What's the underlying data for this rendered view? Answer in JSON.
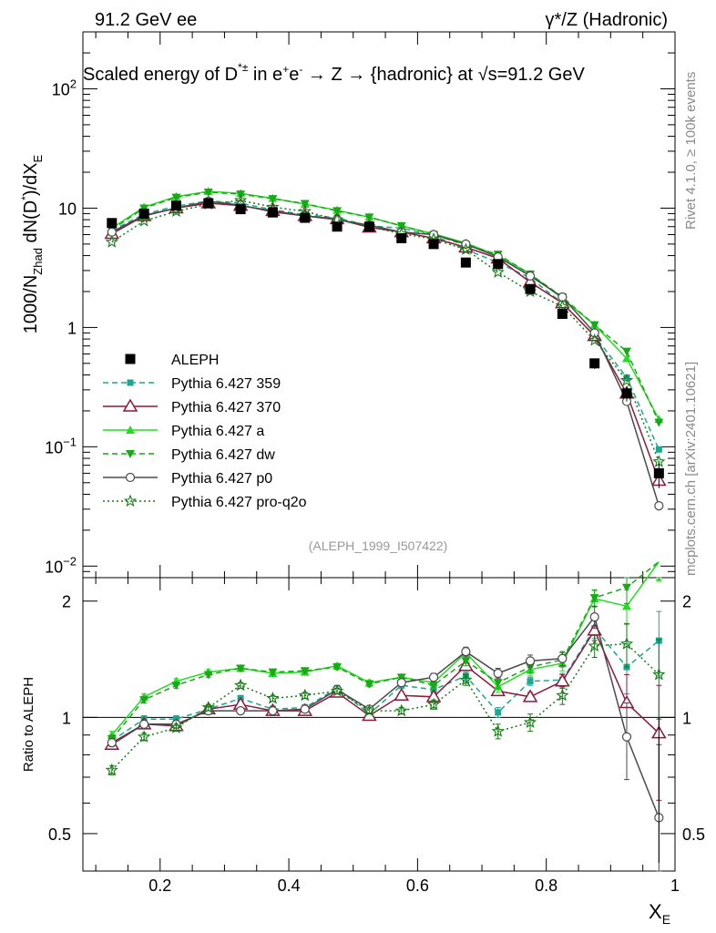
{
  "header": {
    "left": "91.2 GeV ee",
    "right": "γ*/Z (Hadronic)"
  },
  "side_labels": {
    "rivet": "Rivet 4.1.0, ≥ 100k events",
    "mcplots": "mcplots.cern.ch [arXiv:2401.10621]"
  },
  "chart_data": {
    "type": "line",
    "title": "Scaled energy of D*± in e+e- → Z → {hadronic} at √s=91.2 GeV",
    "ylabel": "1000/N_Zhad dN(D*)/dX_E",
    "xlabel": "X_E",
    "ratio_ylabel": "Ratio to ALEPH",
    "watermark": "(ALEPH_1999_I507422)",
    "xlim": [
      0.08,
      1.0
    ],
    "ylim": [
      0.008,
      300
    ],
    "yscale": "log",
    "ratio_ylim": [
      0.4,
      2.3
    ],
    "ratio_yscale": "log",
    "x_ticks": [
      "0.2",
      "0.4",
      "0.6",
      "0.8",
      "1"
    ],
    "y_ticks": [
      "10^-2",
      "10^-1",
      "1",
      "10",
      "10^2"
    ],
    "ratio_ticks": [
      "0.5",
      "1",
      "2"
    ],
    "x": [
      0.125,
      0.175,
      0.225,
      0.275,
      0.325,
      0.375,
      0.425,
      0.475,
      0.525,
      0.575,
      0.625,
      0.675,
      0.725,
      0.775,
      0.825,
      0.875,
      0.925,
      0.975
    ],
    "data": {
      "name": "ALEPH",
      "values": [
        7.5,
        9.0,
        10.5,
        11.0,
        9.8,
        9.2,
        8.3,
        7.0,
        7.0,
        5.6,
        5.0,
        3.5,
        3.4,
        2.1,
        1.3,
        0.5,
        0.28,
        0.06
      ],
      "errors": [
        0.5,
        0.5,
        0.5,
        0.5,
        0.5,
        0.5,
        0.4,
        0.4,
        0.4,
        0.3,
        0.3,
        0.2,
        0.2,
        0.15,
        0.1,
        0.05,
        0.04,
        0.015
      ]
    },
    "series": [
      {
        "name": "Pythia 6.427 359",
        "color": "#1aa891",
        "dash": "6,4",
        "marker": "square",
        "values": [
          6.5,
          8.9,
          10.4,
          11.5,
          11.0,
          9.7,
          8.8,
          8.3,
          7.1,
          6.8,
          5.9,
          4.5,
          3.5,
          2.6,
          1.6,
          0.85,
          0.38,
          0.095
        ],
        "ratio": [
          0.87,
          0.99,
          0.99,
          1.05,
          1.12,
          1.05,
          1.06,
          1.19,
          1.02,
          1.21,
          1.18,
          1.28,
          1.03,
          1.24,
          1.25,
          1.7,
          1.35,
          1.58
        ],
        "ratio_err": [
          0.02,
          0.02,
          0.02,
          0.02,
          0.02,
          0.02,
          0.02,
          0.02,
          0.02,
          0.02,
          0.03,
          0.03,
          0.03,
          0.03,
          0.05,
          0.1,
          0.2,
          0.3
        ]
      },
      {
        "name": "Pythia 6.427 370",
        "color": "#8b1a3a",
        "dash": "",
        "marker": "triangle-open",
        "values": [
          6.1,
          8.6,
          10.0,
          11.0,
          10.5,
          9.5,
          8.6,
          8.1,
          6.9,
          6.3,
          5.6,
          4.7,
          3.8,
          2.4,
          1.6,
          0.85,
          0.28,
          0.052
        ],
        "ratio": [
          0.85,
          0.96,
          0.95,
          1.05,
          1.08,
          1.04,
          1.04,
          1.16,
          1.01,
          1.14,
          1.13,
          1.36,
          1.17,
          1.13,
          1.24,
          1.68,
          1.09,
          0.91
        ],
        "ratio_err": [
          0.02,
          0.02,
          0.02,
          0.02,
          0.02,
          0.02,
          0.02,
          0.02,
          0.02,
          0.02,
          0.03,
          0.03,
          0.03,
          0.03,
          0.05,
          0.1,
          0.2,
          0.3
        ]
      },
      {
        "name": "Pythia 6.427 a",
        "color": "#22dd22",
        "dash": "",
        "marker": "triangle",
        "values": [
          6.8,
          10.2,
          12.5,
          13.8,
          13.3,
          12.1,
          10.8,
          9.6,
          8.4,
          7.1,
          6.1,
          5.1,
          4.0,
          2.8,
          1.75,
          1.05,
          0.55,
          0.17
        ],
        "ratio": [
          0.9,
          1.13,
          1.24,
          1.31,
          1.34,
          1.3,
          1.31,
          1.36,
          1.23,
          1.27,
          1.23,
          1.47,
          1.2,
          1.33,
          1.38,
          2.03,
          1.94,
          2.6
        ],
        "ratio_err": [
          0.02,
          0.02,
          0.02,
          0.02,
          0.02,
          0.02,
          0.02,
          0.02,
          0.02,
          0.02,
          0.03,
          0.04,
          0.04,
          0.05,
          0.06,
          0.1,
          0.2,
          0.35
        ]
      },
      {
        "name": "Pythia 6.427 dw",
        "color": "#18a818",
        "dash": "6,4",
        "marker": "triangle-down",
        "values": [
          6.6,
          10.0,
          12.3,
          13.6,
          13.1,
          12.0,
          10.9,
          9.5,
          8.4,
          7.1,
          6.0,
          4.9,
          4.1,
          2.8,
          1.8,
          1.05,
          0.63,
          0.16
        ],
        "ratio": [
          0.88,
          1.11,
          1.21,
          1.29,
          1.34,
          1.31,
          1.32,
          1.35,
          1.22,
          1.27,
          1.21,
          1.4,
          1.23,
          1.35,
          1.41,
          2.04,
          2.17,
          2.62
        ],
        "ratio_err": [
          0.02,
          0.02,
          0.02,
          0.02,
          0.02,
          0.02,
          0.02,
          0.02,
          0.02,
          0.02,
          0.03,
          0.04,
          0.04,
          0.05,
          0.06,
          0.1,
          0.2,
          0.35
        ]
      },
      {
        "name": "Pythia 6.427 p0",
        "color": "#4a4a4a",
        "dash": "",
        "marker": "circle-open",
        "values": [
          6.3,
          8.7,
          10.0,
          11.4,
          10.6,
          9.3,
          8.6,
          8.0,
          7.2,
          6.3,
          6.0,
          5.0,
          3.9,
          2.7,
          1.8,
          0.9,
          0.24,
          0.032
        ],
        "ratio": [
          0.86,
          0.96,
          0.96,
          1.04,
          1.04,
          1.04,
          1.05,
          1.18,
          1.05,
          1.23,
          1.27,
          1.48,
          1.3,
          1.4,
          1.42,
          1.82,
          0.89,
          0.55
        ],
        "ratio_err": [
          0.02,
          0.02,
          0.02,
          0.02,
          0.02,
          0.02,
          0.02,
          0.02,
          0.02,
          0.02,
          0.03,
          0.04,
          0.04,
          0.05,
          0.06,
          0.12,
          0.2,
          0.3
        ]
      },
      {
        "name": "Pythia 6.427 pro-q2o",
        "color": "#157a15",
        "dash": "2,3",
        "marker": "star-open",
        "values": [
          5.2,
          7.8,
          9.4,
          10.8,
          11.6,
          10.2,
          9.4,
          8.0,
          7.0,
          6.1,
          5.5,
          4.5,
          2.9,
          2.0,
          1.5,
          0.78,
          0.36,
          0.075
        ],
        "ratio": [
          0.73,
          0.89,
          0.94,
          1.06,
          1.21,
          1.12,
          1.14,
          1.17,
          1.04,
          1.04,
          1.08,
          1.25,
          0.92,
          0.97,
          1.14,
          1.53,
          1.55,
          1.29
        ],
        "ratio_err": [
          0.02,
          0.02,
          0.02,
          0.02,
          0.02,
          0.02,
          0.02,
          0.02,
          0.02,
          0.02,
          0.03,
          0.04,
          0.04,
          0.05,
          0.06,
          0.1,
          0.2,
          0.3
        ]
      }
    ]
  }
}
